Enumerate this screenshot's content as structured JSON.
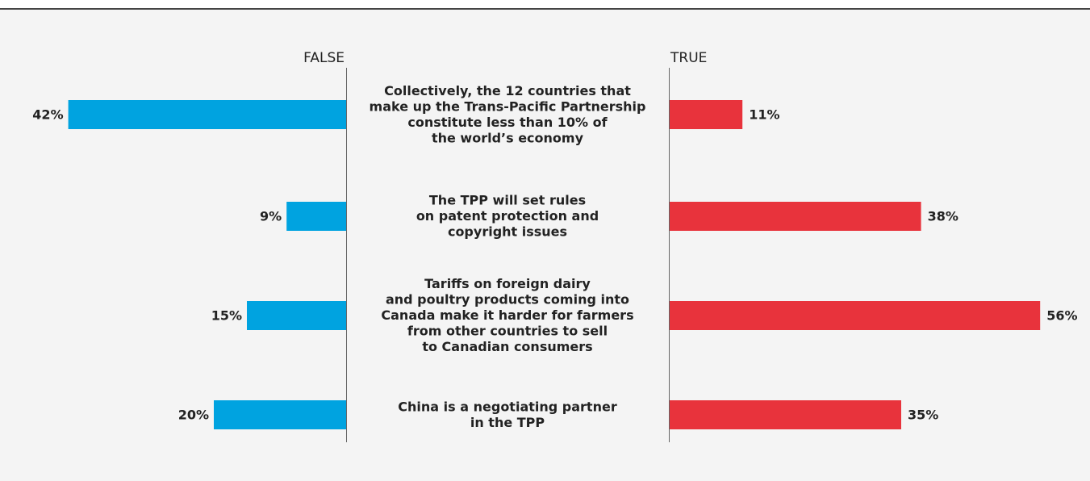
{
  "chart_data": {
    "type": "butterfly_bar",
    "categories": [
      "Collectively, the 12 countries that\nmake up the Trans-Pacific Partnership\nconstitute less than 10% of\nthe world’s economy",
      "The TPP will set rules\non patent protection and\ncopyright issues",
      "Tariffs on foreign dairy\nand poultry products coming into\nCanada make it harder for farmers\nfrom other countries to sell\nto Canadian consumers",
      "China is a negotiating partner\nin the TPP"
    ],
    "series": [
      {
        "name": "FALSE",
        "color": "#00a3e0",
        "values": [
          42,
          9,
          15,
          20
        ],
        "value_labels": [
          "42%",
          "9%",
          "15%",
          "20%"
        ]
      },
      {
        "name": "TRUE",
        "color": "#e8333c",
        "values": [
          11,
          38,
          56,
          35
        ],
        "value_labels": [
          "11%",
          "38%",
          "56%",
          "35%"
        ]
      }
    ]
  }
}
